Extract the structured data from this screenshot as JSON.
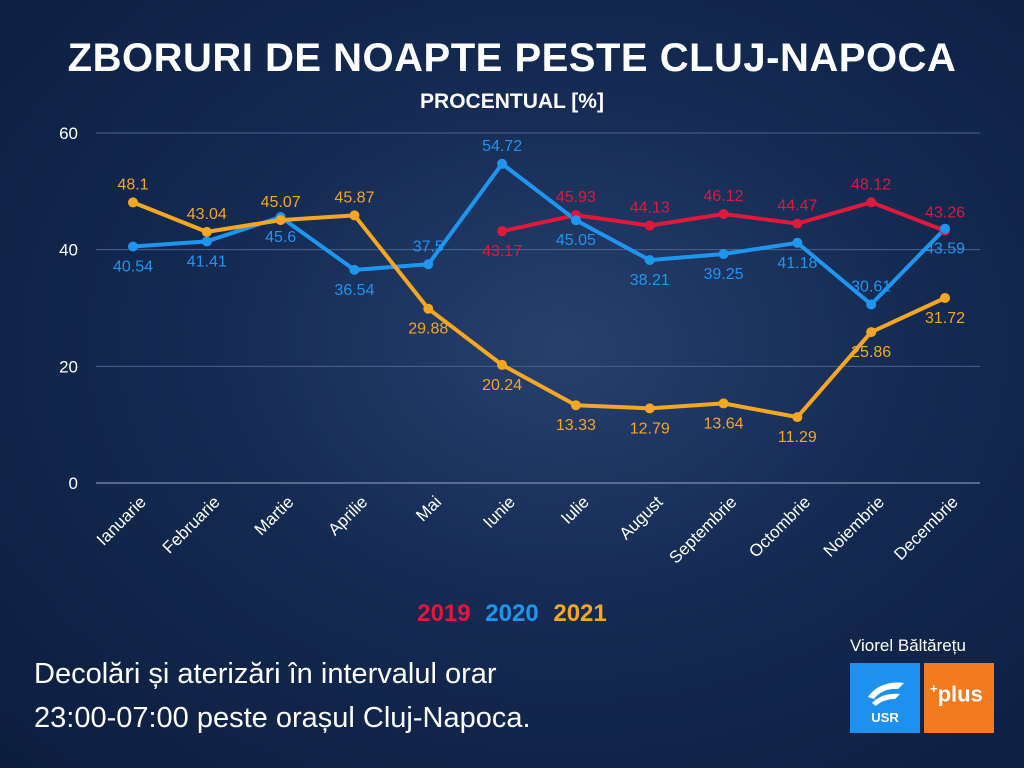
{
  "header": {
    "title": "ZBORURI DE NOAPTE PESTE CLUJ-NAPOCA",
    "subtitle": "PROCENTUAL [%]"
  },
  "legend": {
    "y2019": "2019",
    "y2020": "2020",
    "y2021": "2021"
  },
  "footnote": {
    "line1": "Decolări și aterizări în intervalul orar",
    "line2": "23:00-07:00 peste orașul Cluj-Napoca."
  },
  "author": "Viorel Băltărețu",
  "logos": {
    "usr": "USR",
    "plus_sup": "+",
    "plus": "plus"
  },
  "colors": {
    "c2019": "#e0183c",
    "c2020": "#1e96f0",
    "c2021": "#f5a623",
    "grid": "#4d6290",
    "text": "#ffffff"
  },
  "chart_data": {
    "type": "line",
    "title": "ZBORURI DE NOAPTE PESTE CLUJ-NAPOCA",
    "subtitle": "PROCENTUAL [%]",
    "categories": [
      "Ianuarie",
      "Februarie",
      "Martie",
      "Aprilie",
      "Mai",
      "Iunie",
      "Iulie",
      "August",
      "Septembrie",
      "Octombrie",
      "Noiembrie",
      "Decembrie"
    ],
    "ylim": [
      0,
      60
    ],
    "yticks": [
      0,
      20,
      40,
      60
    ],
    "grid": true,
    "legend_position": "bottom",
    "series": [
      {
        "name": "2019",
        "color": "#e0183c",
        "values": [
          null,
          null,
          null,
          null,
          null,
          43.17,
          45.93,
          44.13,
          46.12,
          44.47,
          48.12,
          43.26
        ]
      },
      {
        "name": "2020",
        "color": "#1e96f0",
        "values": [
          40.54,
          41.41,
          45.6,
          36.54,
          37.5,
          54.72,
          45.05,
          38.21,
          39.25,
          41.18,
          30.61,
          43.59
        ]
      },
      {
        "name": "2021",
        "color": "#f5a623",
        "values": [
          48.1,
          43.04,
          45.07,
          45.87,
          29.88,
          20.24,
          13.33,
          12.79,
          13.64,
          11.29,
          25.86,
          31.72
        ]
      }
    ]
  }
}
